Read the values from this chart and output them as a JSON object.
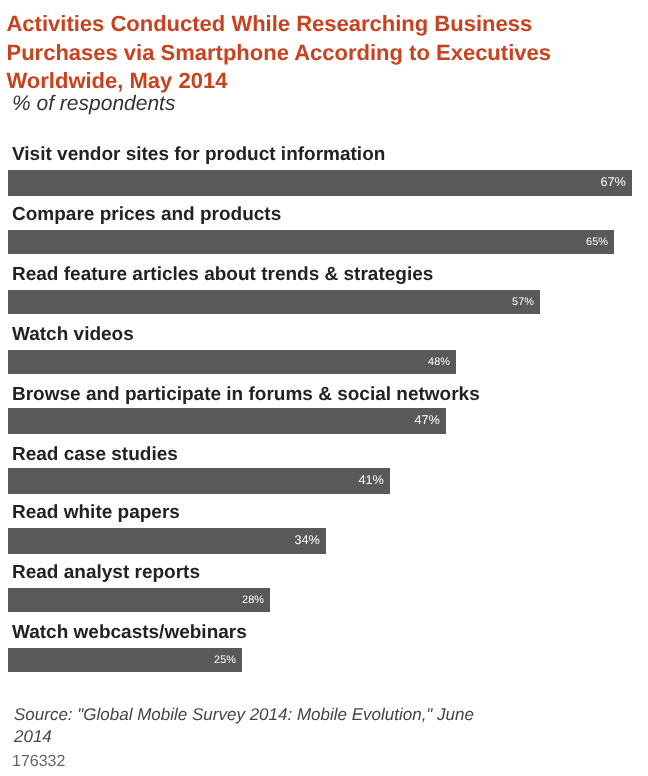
{
  "chart_data": {
    "type": "bar",
    "orientation": "horizontal",
    "title": "Activities Conducted While Researching Business Purchases via Smartphone According to Executives Worldwide, May 2014",
    "subtitle": "% of respondents",
    "categories": [
      "Visit vendor sites for product information",
      "Compare prices and products",
      "Read feature articles about trends & strategies",
      "Watch videos",
      "Browse and participate in forums & social networks",
      "Read case studies",
      "Read white papers",
      "Read analyst reports",
      "Watch webcasts/webinars"
    ],
    "values": [
      67,
      65,
      57,
      48,
      47,
      41,
      34,
      28,
      25
    ],
    "value_labels": [
      "67%",
      "65%",
      "57%",
      "48%",
      "47%",
      "41%",
      "34%",
      "28%",
      "25%"
    ],
    "color": "#595959",
    "annotations": [
      "Source: \"Global Mobile Survey 2014: Mobile Evolution,\" June 2014",
      "176332"
    ],
    "legend": false
  }
}
